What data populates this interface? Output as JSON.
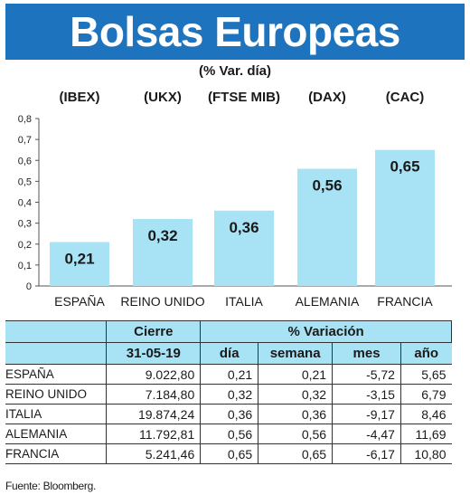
{
  "title": "Bolsas Europeas",
  "subtitle": "(% Var. día)",
  "chart_data": {
    "type": "bar",
    "categories": [
      "ESPAÑA",
      "REINO UNIDO",
      "ITALIA",
      "ALEMANIA",
      "FRANCIA"
    ],
    "index_labels": [
      "(IBEX)",
      "(UKX)",
      "(FTSE MIB)",
      "(DAX)",
      "(CAC)"
    ],
    "values": [
      0.21,
      0.32,
      0.36,
      0.56,
      0.65
    ],
    "value_labels": [
      "0,21",
      "0,32",
      "0,36",
      "0,56",
      "0,65"
    ],
    "ylim": [
      0,
      0.8
    ],
    "yticks": [
      "0",
      "0,1",
      "0,2",
      "0,3",
      "0,4",
      "0,5",
      "0,6",
      "0,7",
      "0,8"
    ],
    "bar_color": "#a8e3f5",
    "grid": false
  },
  "table": {
    "header_cierre": "Cierre",
    "header_variacion": "% Variación",
    "date": "31-05-19",
    "cols": [
      "día",
      "semana",
      "mes",
      "año"
    ],
    "rows": [
      {
        "country": "ESPAÑA",
        "cierre": "9.022,80",
        "dia": "0,21",
        "semana": "0,21",
        "mes": "-5,72",
        "ano": "5,65"
      },
      {
        "country": "REINO UNIDO",
        "cierre": "7.184,80",
        "dia": "0,32",
        "semana": "0,32",
        "mes": "-3,15",
        "ano": "6,79"
      },
      {
        "country": "ITALIA",
        "cierre": "19.874,24",
        "dia": "0,36",
        "semana": "0,36",
        "mes": "-9,17",
        "ano": "8,46"
      },
      {
        "country": "ALEMANIA",
        "cierre": "11.792,81",
        "dia": "0,56",
        "semana": "0,56",
        "mes": "-4,47",
        "ano": "11,69"
      },
      {
        "country": "FRANCIA",
        "cierre": "5.241,46",
        "dia": "0,65",
        "semana": "0,65",
        "mes": "-6,17",
        "ano": "10,80"
      }
    ]
  },
  "source": "Fuente: Bloomberg."
}
